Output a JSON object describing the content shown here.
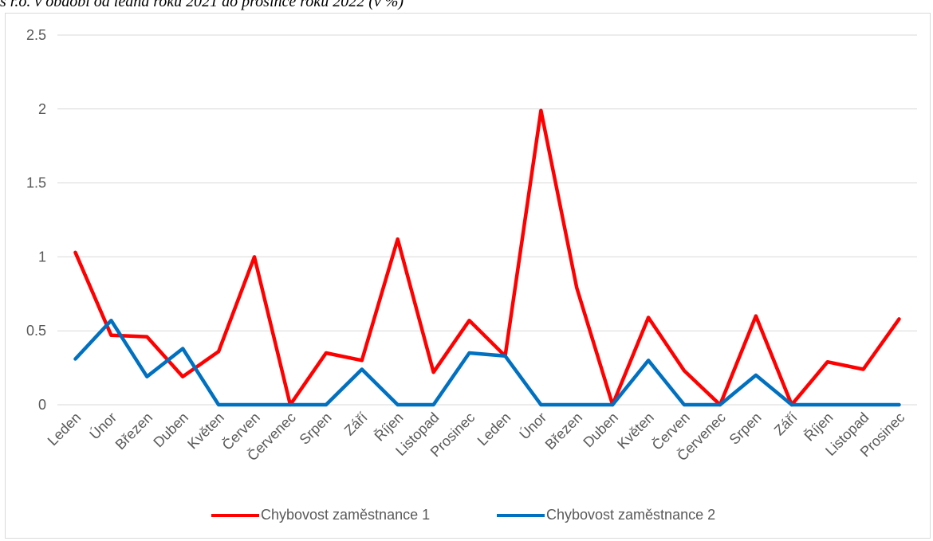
{
  "page": {
    "title": "s r.o. v období od ledna roku 2021 do prosince roku 2022 (v %)"
  },
  "chart_data": {
    "type": "line",
    "title": "s r.o. v období od ledna roku 2021 do prosince roku 2022 (v %)",
    "xlabel": "",
    "ylabel": "",
    "ylim": [
      0,
      2.5
    ],
    "yticks": [
      "0",
      "0.5",
      "1",
      "1.5",
      "2",
      "2.5"
    ],
    "grid": true,
    "legend_position": "bottom",
    "categories": [
      "Leden",
      "Únor",
      "Březen",
      "Duben",
      "Květen",
      "Červen",
      "Červenec",
      "Srpen",
      "Září",
      "Říjen",
      "Listopad",
      "Prosinec",
      "Leden",
      "Únor",
      "Březen",
      "Duben",
      "Květen",
      "Červen",
      "Červenec",
      "Srpen",
      "Září",
      "Říjen",
      "Listopad",
      "Prosinec"
    ],
    "series": [
      {
        "name": "Chybovost zaměstnance 1",
        "color": "#ff0000",
        "values": [
          1.03,
          0.47,
          0.46,
          0.19,
          0.36,
          1.0,
          0.0,
          0.35,
          0.3,
          1.12,
          0.22,
          0.57,
          0.33,
          1.99,
          0.79,
          0.0,
          0.59,
          0.23,
          0.0,
          0.6,
          0.0,
          0.29,
          0.24,
          0.58
        ]
      },
      {
        "name": "Chybovost zaměstnance 2",
        "color": "#0070c0",
        "values": [
          0.31,
          0.57,
          0.19,
          0.38,
          0.0,
          0.0,
          0.0,
          0.0,
          0.24,
          0.0,
          0.0,
          0.35,
          0.33,
          0.0,
          0.0,
          0.0,
          0.3,
          0.0,
          0.0,
          0.2,
          0.0,
          0.0,
          0.0,
          0.0
        ]
      }
    ]
  }
}
